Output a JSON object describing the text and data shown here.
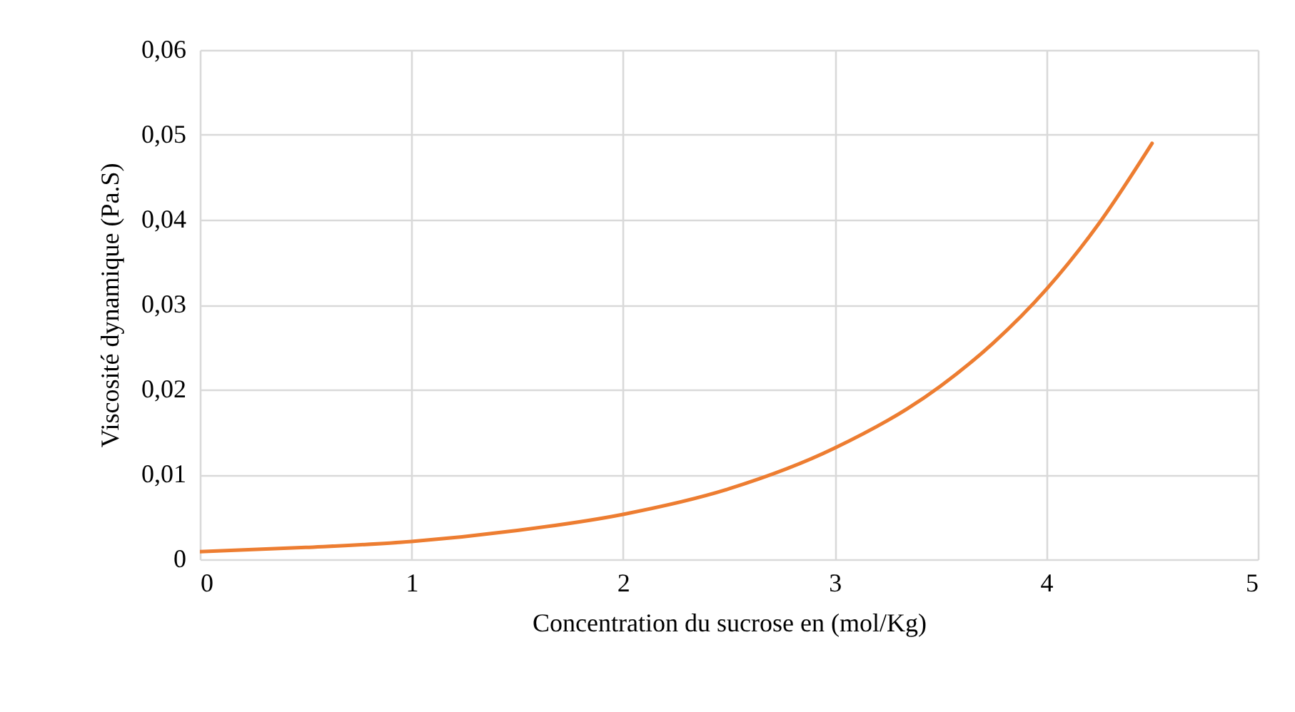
{
  "chart_data": {
    "type": "line",
    "xlabel": "Concentration du sucrose en (mol/Kg)",
    "ylabel": "Viscosité dynamique  (Pa.S)",
    "x": [
      0,
      0.5,
      1,
      1.5,
      2,
      2.5,
      3,
      3.5,
      3.75,
      4,
      4.25,
      4.5
    ],
    "series": [
      {
        "color": "#ed7d31",
        "values": [
          0.0009,
          0.0014,
          0.0021,
          0.0034,
          0.0053,
          0.0083,
          0.0131,
          0.0204,
          0.0255,
          0.0318,
          0.0396,
          0.049
        ]
      }
    ],
    "xlim": [
      0,
      5
    ],
    "xticks": [
      0,
      1,
      2,
      3,
      4,
      5
    ],
    "ylim": [
      0,
      0.06
    ],
    "yticks": [
      0,
      {
        "value": 0.01,
        "label": "0,01"
      },
      {
        "value": 0.02,
        "label": "0,02"
      },
      {
        "value": 0.03,
        "label": "0,03"
      },
      {
        "value": 0.04,
        "label": "0,04"
      },
      {
        "value": 0.05,
        "label": "0,05"
      },
      {
        "value": 0.06,
        "label": "0,06"
      }
    ],
    "grid": true,
    "marker": "none",
    "line_style": "solid"
  }
}
